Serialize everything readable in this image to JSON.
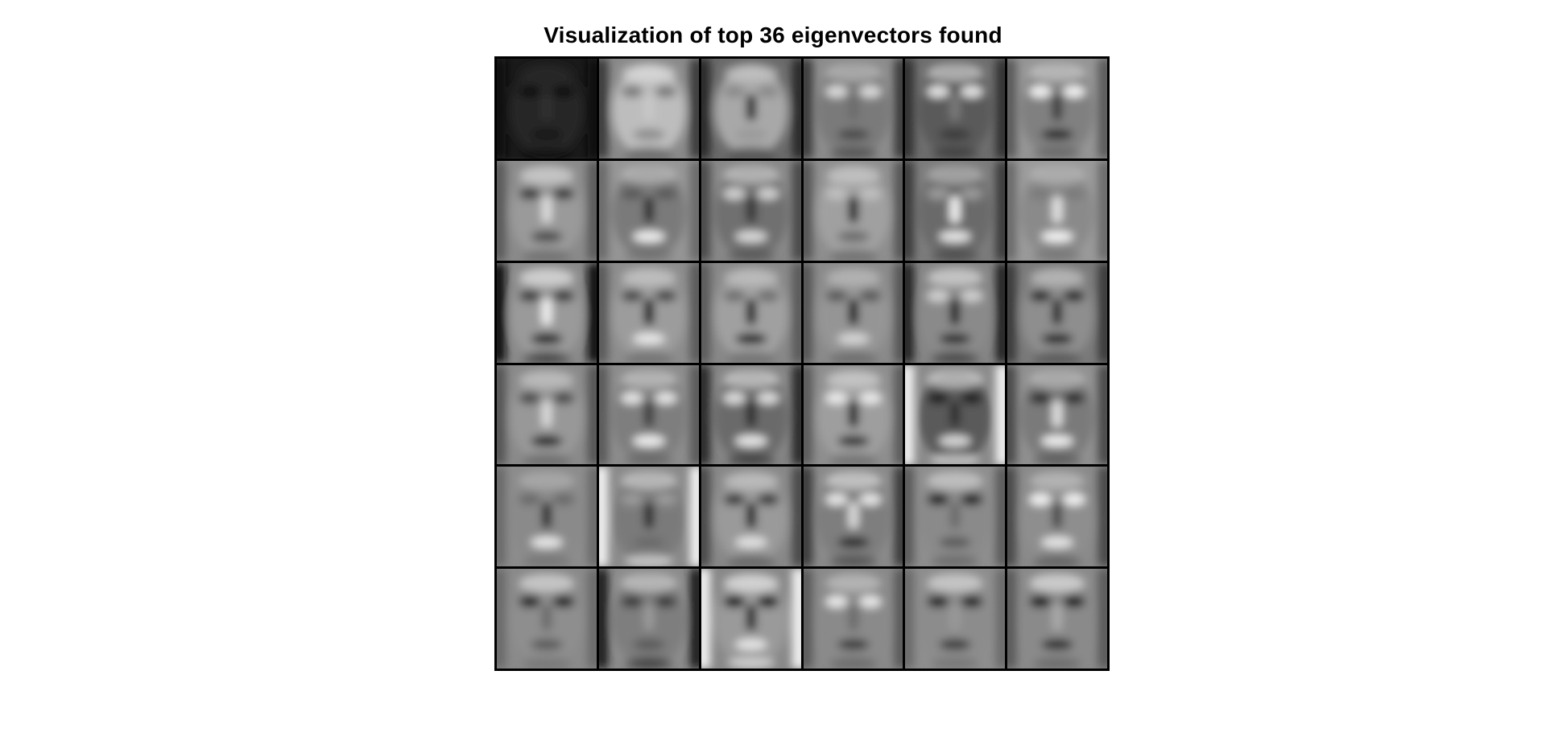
{
  "title": "Visualization of top 36 eigenvectors found",
  "grid": {
    "rows": 6,
    "cols": 6
  },
  "tiles": [
    {
      "bg": "#1a1a1a",
      "face": "#262626",
      "eyes": "#0c0c0c",
      "nose": "#303030",
      "mouth": "#121212",
      "edge": "#0a0a0a",
      "hl": "#2a2a2a"
    },
    {
      "bg": "#8a8a8a",
      "face": "#bdbdbd",
      "eyes": "#7a7a7a",
      "nose": "#c8c8c8",
      "mouth": "#8c8c8c",
      "edge": "#3a3a3a",
      "hl": "#e8e8e8"
    },
    {
      "bg": "#6a6a6a",
      "face": "#a8a8a8",
      "eyes": "#8a8a8a",
      "nose": "#202020",
      "mouth": "#9a9a9a",
      "edge": "#2a2a2a",
      "hl": "#cfcfcf"
    },
    {
      "bg": "#8c8c8c",
      "face": "#7a7a7a",
      "eyes": "#dadada",
      "nose": "#6c6c6c",
      "mouth": "#4a4a4a",
      "edge": "#3a3a3a",
      "hl": "#cccccc"
    },
    {
      "bg": "#6e6e6e",
      "face": "#5a5a5a",
      "eyes": "#e2e2e2",
      "nose": "#7a7a7a",
      "mouth": "#3a3a3a",
      "edge": "#303030",
      "hl": "#f0f0f0"
    },
    {
      "bg": "#959595",
      "face": "#808080",
      "eyes": "#f2f2f2",
      "nose": "#3a3a3a",
      "mouth": "#2a2a2a",
      "edge": "#5a5a5a",
      "hl": "#e0e0e0"
    },
    {
      "bg": "#8a8a8a",
      "face": "#9a9a9a",
      "eyes": "#3a3a3a",
      "nose": "#dcdcdc",
      "mouth": "#4a4a4a",
      "edge": "#5a5a5a",
      "hl": "#e8e8e8"
    },
    {
      "bg": "#959595",
      "face": "#7a7a7a",
      "eyes": "#5a5a5a",
      "nose": "#2a2a2a",
      "mouth": "#f0f0f0",
      "edge": "#6a6a6a",
      "hl": "#cfcfcf"
    },
    {
      "bg": "#888888",
      "face": "#707070",
      "eyes": "#d0d0d0",
      "nose": "#303030",
      "mouth": "#dadada",
      "edge": "#4a4a4a",
      "hl": "#e6e6e6"
    },
    {
      "bg": "#8e8e8e",
      "face": "#a0a0a0",
      "eyes": "#c0c0c0",
      "nose": "#1a1a1a",
      "mouth": "#6a6a6a",
      "edge": "#555555",
      "hl": "#d8d8d8"
    },
    {
      "bg": "#7c7c7c",
      "face": "#6a6a6a",
      "eyes": "#9a9a9a",
      "nose": "#f2f2f2",
      "mouth": "#e6e6e6",
      "edge": "#3a3a3a",
      "hl": "#cccccc"
    },
    {
      "bg": "#9a9a9a",
      "face": "#8a8a8a",
      "eyes": "#7a7a7a",
      "nose": "#e2e2e2",
      "mouth": "#f4f4f4",
      "edge": "#6a6a6a",
      "hl": "#c6c6c6"
    },
    {
      "bg": "#8a8a8a",
      "face": "#9a9a9a",
      "eyes": "#3a3a3a",
      "nose": "#f0f0f0",
      "mouth": "#1e1e1e",
      "edge": "#0e0e0e",
      "hl": "#fafafa"
    },
    {
      "bg": "#8c8c8c",
      "face": "#9c9c9c",
      "eyes": "#4a4a4a",
      "nose": "#111111",
      "mouth": "#e8e8e8",
      "edge": "#5a5a5a",
      "hl": "#d8d8d8"
    },
    {
      "bg": "#888888",
      "face": "#a0a0a0",
      "eyes": "#707070",
      "nose": "#151515",
      "mouth": "#1a1a1a",
      "edge": "#5a5a5a",
      "hl": "#d0d0d0"
    },
    {
      "bg": "#8a8a8a",
      "face": "#959595",
      "eyes": "#5a5a5a",
      "nose": "#141414",
      "mouth": "#d6d6d6",
      "edge": "#555555",
      "hl": "#c8c8c8"
    },
    {
      "bg": "#858585",
      "face": "#8a8a8a",
      "eyes": "#cfcfcf",
      "nose": "#1e1e1e",
      "mouth": "#2a2a2a",
      "edge": "#202020",
      "hl": "#f2f2f2"
    },
    {
      "bg": "#7a7a7a",
      "face": "#8e8e8e",
      "eyes": "#2a2a2a",
      "nose": "#262626",
      "mouth": "#202020",
      "edge": "#3a3a3a",
      "hl": "#cfcfcf"
    },
    {
      "bg": "#8a8a8a",
      "face": "#989898",
      "eyes": "#4a4a4a",
      "nose": "#dadada",
      "mouth": "#1a1a1a",
      "edge": "#555555",
      "hl": "#d6d6d6"
    },
    {
      "bg": "#8c8c8c",
      "face": "#7e7e7e",
      "eyes": "#e4e4e4",
      "nose": "#3a3a3a",
      "mouth": "#f0f0f0",
      "edge": "#5a5a5a",
      "hl": "#dcdcdc"
    },
    {
      "bg": "#858585",
      "face": "#6a6a6a",
      "eyes": "#dcdcdc",
      "nose": "#2a2a2a",
      "mouth": "#e8e8e8",
      "edge": "#2a2a2a",
      "hl": "#f4f4f4"
    },
    {
      "bg": "#8e8e8e",
      "face": "#9e9e9e",
      "eyes": "#eaeaea",
      "nose": "#1a1a1a",
      "mouth": "#2e2e2e",
      "edge": "#5a5a5a",
      "hl": "#e2e2e2"
    },
    {
      "bg": "#8a8a8a",
      "face": "#5a5a5a",
      "eyes": "#1e1e1e",
      "nose": "#2e2e2e",
      "mouth": "#d8d8d8",
      "edge": "#f0f0f0",
      "hl": "#f6f6f6"
    },
    {
      "bg": "#909090",
      "face": "#7a7a7a",
      "eyes": "#2a2a2a",
      "nose": "#e0e0e0",
      "mouth": "#f0f0f0",
      "edge": "#4a4a4a",
      "hl": "#cfcfcf"
    },
    {
      "bg": "#8c8c8c",
      "face": "#8a8a8a",
      "eyes": "#6a6a6a",
      "nose": "#2a2a2a",
      "mouth": "#e8e8e8",
      "edge": "#6a6a6a",
      "hl": "#bdbdbd"
    },
    {
      "bg": "#8a8a8a",
      "face": "#7a7a7a",
      "eyes": "#9a9a9a",
      "nose": "#2a2a2a",
      "mouth": "#6a6a6a",
      "edge": "#f0f0f0",
      "hl": "#e8e8e8"
    },
    {
      "bg": "#888888",
      "face": "#9a9a9a",
      "eyes": "#3a3a3a",
      "nose": "#1e1e1e",
      "mouth": "#e2e2e2",
      "edge": "#4a4a4a",
      "hl": "#d6d6d6"
    },
    {
      "bg": "#8a8a8a",
      "face": "#7e7e7e",
      "eyes": "#e6e6e6",
      "nose": "#dadada",
      "mouth": "#2a2a2a",
      "edge": "#3a3a3a",
      "hl": "#f4f4f4"
    },
    {
      "bg": "#8e8e8e",
      "face": "#8a8a8a",
      "eyes": "#1a1a1a",
      "nose": "#6a6a6a",
      "mouth": "#5a5a5a",
      "edge": "#5a5a5a",
      "hl": "#e8e8e8"
    },
    {
      "bg": "#8a8a8a",
      "face": "#8e8e8e",
      "eyes": "#f2f2f2",
      "nose": "#4a4a4a",
      "mouth": "#e6e6e6",
      "edge": "#4a4a4a",
      "hl": "#d0d0d0"
    },
    {
      "bg": "#8a8a8a",
      "face": "#8e8e8e",
      "eyes": "#1a1a1a",
      "nose": "#6a6a6a",
      "mouth": "#5a5a5a",
      "edge": "#6a6a6a",
      "hl": "#f2f2f2"
    },
    {
      "bg": "#8c8c8c",
      "face": "#7e7e7e",
      "eyes": "#3a3a3a",
      "nose": "#9a9a9a",
      "mouth": "#5a5a5a",
      "edge": "#1a1a1a",
      "hl": "#e2e2e2"
    },
    {
      "bg": "#888888",
      "face": "#9a9a9a",
      "eyes": "#0e0e0e",
      "nose": "#202020",
      "mouth": "#e6e6e6",
      "edge": "#f0f0f0",
      "hl": "#ffffff"
    },
    {
      "bg": "#8a8a8a",
      "face": "#8a8a8a",
      "eyes": "#e8e8e8",
      "nose": "#6a6a6a",
      "mouth": "#3a3a3a",
      "edge": "#5a5a5a",
      "hl": "#d6d6d6"
    },
    {
      "bg": "#8e8e8e",
      "face": "#8c8c8c",
      "eyes": "#1a1a1a",
      "nose": "#9a9a9a",
      "mouth": "#3a3a3a",
      "edge": "#6a6a6a",
      "hl": "#f2f2f2"
    },
    {
      "bg": "#8a8a8a",
      "face": "#8a8a8a",
      "eyes": "#0e0e0e",
      "nose": "#aaaaaa",
      "mouth": "#2a2a2a",
      "edge": "#5a5a5a",
      "hl": "#ffffff"
    }
  ]
}
